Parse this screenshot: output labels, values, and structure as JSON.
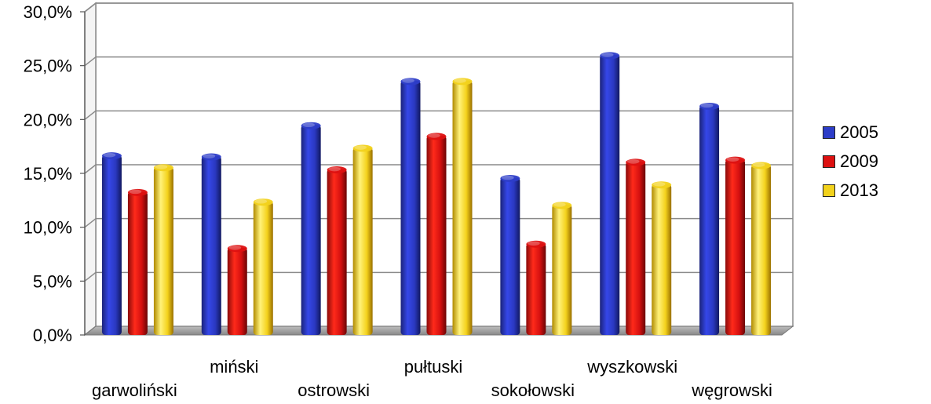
{
  "chart_data": {
    "type": "bar",
    "categories": [
      "garwoliński",
      "miński",
      "ostrowski",
      "pułtuski",
      "sokołowski",
      "wyszkowski",
      "węgrowski"
    ],
    "series": [
      {
        "name": "2005",
        "color": "#2d3dc8",
        "values": [
          16.7,
          16.6,
          19.5,
          23.6,
          14.6,
          26.0,
          21.3
        ]
      },
      {
        "name": "2009",
        "color": "#dd1111",
        "values": [
          13.3,
          8.1,
          15.4,
          18.5,
          8.5,
          16.1,
          16.3
        ]
      },
      {
        "name": "2013",
        "color": "#f2d21c",
        "values": [
          15.6,
          12.4,
          17.4,
          23.6,
          12.1,
          14.0,
          15.8
        ]
      }
    ],
    "ylim": [
      0,
      30
    ],
    "yticks": [
      "0,0%",
      "5,0%",
      "10,0%",
      "15,0%",
      "20,0%",
      "25,0%",
      "30,0%"
    ],
    "grid": true,
    "legend_position": "right"
  }
}
